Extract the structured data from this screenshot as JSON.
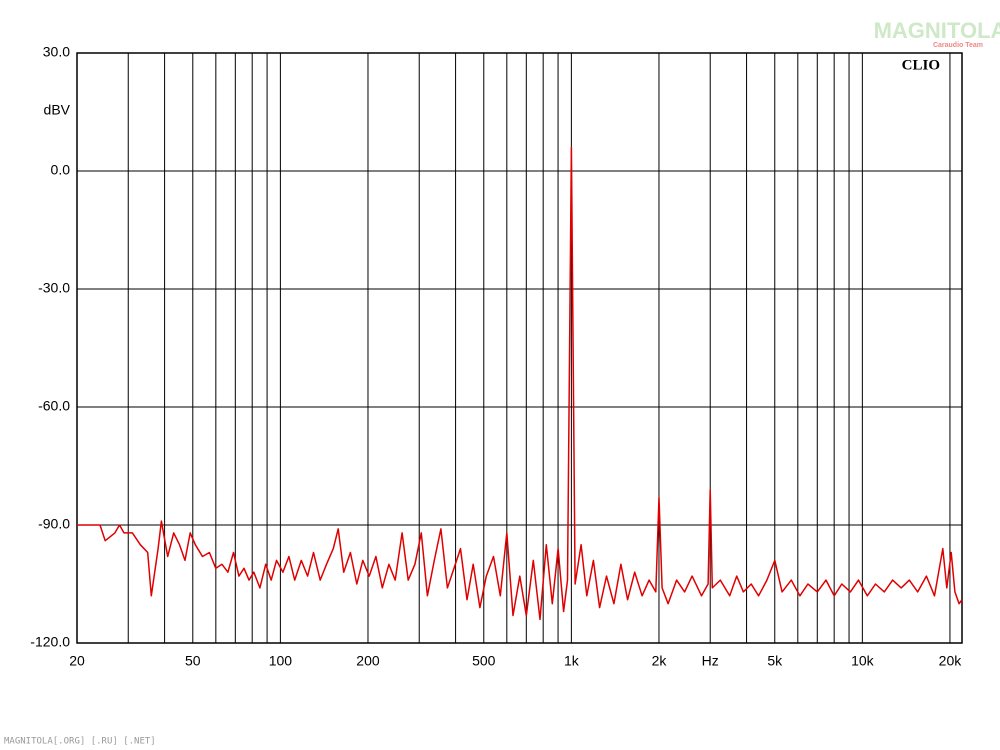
{
  "logo": "MAGNITOLA",
  "logo_sub": "Caraudio Team",
  "footer": "MAGNITOLA[.ORG] [.RU] [.NET]",
  "chart_data": {
    "type": "line",
    "brand": "CLIO",
    "y_label": "dBV",
    "log_x": true,
    "grid": true,
    "xlim": [
      20,
      22000
    ],
    "ylim": [
      -120,
      30
    ],
    "yticks": [
      {
        "value": 30,
        "label": "30.0"
      },
      {
        "value": 0,
        "label": "0.0"
      },
      {
        "value": -30,
        "label": "-30.0"
      },
      {
        "value": -60,
        "label": "-60.0"
      },
      {
        "value": -90,
        "label": "-90.0"
      },
      {
        "value": -120,
        "label": "-120.0"
      }
    ],
    "xticks": [
      20,
      50,
      100,
      200,
      500,
      {
        "value": 1000,
        "label": "1k"
      },
      {
        "value": 2000,
        "label": "2k"
      },
      {
        "value": 3000,
        "label": "Hz"
      },
      {
        "value": 5000,
        "label": "5k"
      },
      {
        "value": 10000,
        "label": "10k"
      },
      {
        "value": 20000,
        "label": "20k"
      }
    ],
    "xminor": [
      30,
      40,
      60,
      70,
      80,
      90,
      300,
      400,
      600,
      700,
      800,
      900,
      4000,
      6000,
      7000,
      8000,
      9000
    ],
    "x": [
      20,
      24,
      25,
      27,
      28,
      29,
      31,
      33,
      35,
      36,
      38,
      39,
      41,
      43,
      45,
      47,
      49,
      51,
      54,
      57,
      60,
      63,
      66,
      69,
      72,
      75,
      78,
      81,
      85,
      89,
      93,
      97,
      102,
      107,
      112,
      118,
      124,
      130,
      137,
      144,
      152,
      158,
      165,
      174,
      183,
      192,
      202,
      213,
      224,
      236,
      248,
      262,
      275,
      290,
      305,
      320,
      338,
      356,
      375,
      395,
      416,
      438,
      460,
      485,
      510,
      540,
      570,
      600,
      630,
      665,
      700,
      740,
      780,
      820,
      860,
      900,
      940,
      970,
      1000,
      1030,
      1080,
      1130,
      1190,
      1250,
      1320,
      1400,
      1480,
      1560,
      1650,
      1750,
      1850,
      1950,
      2000,
      2050,
      2150,
      2300,
      2450,
      2600,
      2800,
      2950,
      3000,
      3050,
      3250,
      3500,
      3700,
      3900,
      4150,
      4400,
      4700,
      5000,
      5300,
      5700,
      6100,
      6500,
      7000,
      7500,
      8000,
      8500,
      9100,
      9700,
      10400,
      11100,
      11900,
      12700,
      13600,
      14500,
      15500,
      16600,
      17700,
      18900,
      19500,
      20200,
      20800,
      21500,
      22000
    ],
    "series": [
      {
        "color": "#e00000",
        "values": [
          -90,
          -90,
          -94,
          -92,
          -90,
          -92,
          -92,
          -95,
          -97,
          -108,
          -96,
          -89,
          -98,
          -92,
          -95,
          -99,
          -92,
          -95,
          -98,
          -97,
          -101,
          -100,
          -102,
          -97,
          -103,
          -101,
          -104,
          -102,
          -106,
          -100,
          -104,
          -99,
          -102,
          -98,
          -104,
          -99,
          -103,
          -97,
          -104,
          -100,
          -96,
          -91,
          -102,
          -97,
          -105,
          -99,
          -103,
          -98,
          -106,
          -100,
          -104,
          -92,
          -104,
          -100,
          -92,
          -108,
          -99,
          -91,
          -106,
          -101,
          -96,
          -109,
          -100,
          -111,
          -103,
          -98,
          -108,
          -92,
          -113,
          -103,
          -113,
          -99,
          -114,
          -95,
          -110,
          -96,
          -112,
          -104,
          6,
          -105,
          -95,
          -108,
          -99,
          -111,
          -103,
          -110,
          -100,
          -109,
          -102,
          -108,
          -104,
          -107,
          -83,
          -106,
          -110,
          -104,
          -107,
          -103,
          -108,
          -105,
          -81,
          -106,
          -104,
          -108,
          -103,
          -107,
          -105,
          -108,
          -104,
          -99,
          -107,
          -104,
          -108,
          -105,
          -107,
          -104,
          -108,
          -105,
          -107,
          -104,
          -108,
          -105,
          -107,
          -104,
          -106,
          -104,
          -107,
          -103,
          -108,
          -96,
          -106,
          -97,
          -107,
          -110,
          -109
        ]
      }
    ]
  }
}
